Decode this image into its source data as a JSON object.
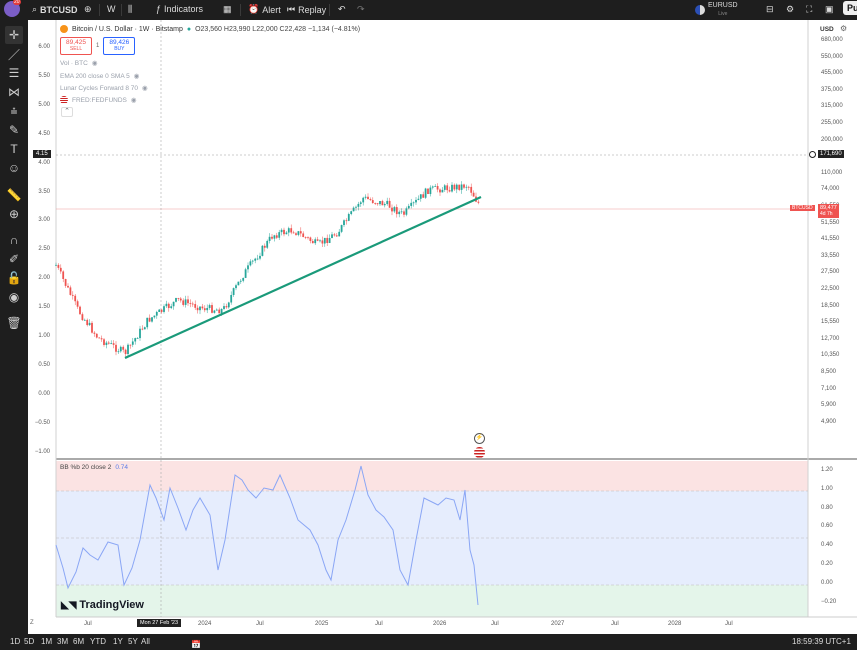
{
  "topbar": {
    "symbol": "BTCUSD",
    "interval": "W",
    "indicators_label": "Indicators",
    "alert_label": "Alert",
    "replay_label": "Replay",
    "compare_symbol": "EURUSD",
    "compare_sub": "Live",
    "publish_label": "Pu",
    "avatar_badge": "20"
  },
  "legend": {
    "title": "Bitcoin / U.S. Dollar · 1W · Bitstamp",
    "ohlc": "O23,560  H23,990  L22,000  C22,428  −1,134 (−4.81%)",
    "sell_price": "89,425",
    "sell_label": "SELL",
    "buy_price": "89,426",
    "buy_label": "BUY",
    "spread": "1",
    "indicators": [
      "Vol · BTC",
      "EMA 200 close 0 SMA 5",
      "Lunar Cycles Forward 8 70",
      "FRED:FEDFUNDS"
    ]
  },
  "left_axis": [
    "6.00",
    "5.50",
    "5.00",
    "4.50",
    "4.00",
    "3.50",
    "3.00",
    "2.50",
    "2.00",
    "1.50",
    "1.00",
    "0.50",
    "0.00",
    "−0.50",
    "−1.00"
  ],
  "left_axis_marker": "4.15",
  "right_axis": {
    "currency": "USD",
    "labels": [
      "680,000",
      "550,000",
      "455,000",
      "375,000",
      "315,000",
      "255,000",
      "200,000",
      "135,000",
      "110,000",
      "74,000",
      "61,550",
      "51,550",
      "41,550",
      "33,550",
      "27,500",
      "22,500",
      "18,500",
      "15,550",
      "12,700",
      "10,350",
      "8,500",
      "7,100",
      "5,900",
      "4,900"
    ],
    "marker_price": "171,690",
    "btc_tag": "BTCUSD",
    "btc_price": "89,477",
    "btc_time": "4d 7h"
  },
  "lower_pane": {
    "title": "BB %b 20 close 2",
    "value": "0.74",
    "axis": [
      "1.20",
      "1.00",
      "0.80",
      "0.60",
      "0.40",
      "0.20",
      "0.00",
      "−0.20"
    ]
  },
  "watermark": "TradingView",
  "time_axis": {
    "labels": [
      "Jul",
      "2024",
      "Jul",
      "2025",
      "Jul",
      "2026",
      "Jul",
      "2027",
      "Jul",
      "2028",
      "Jul"
    ],
    "crosshair_date": "Mon 27 Feb '23"
  },
  "bottom": {
    "ranges": [
      "1D",
      "5D",
      "1M",
      "3M",
      "6M",
      "YTD",
      "1Y",
      "5Y",
      "All"
    ],
    "clock": "18:59:39 UTC+1"
  },
  "colors": {
    "trendline": "#1a9a7a",
    "candle_up": "#26a69a",
    "candle_down": "#ef5350",
    "bb_line": "#8aa6f5",
    "bb_top": "#fbe3e3",
    "bb_mid": "#e6edfd",
    "bb_bottom": "#e4f5ea"
  }
}
